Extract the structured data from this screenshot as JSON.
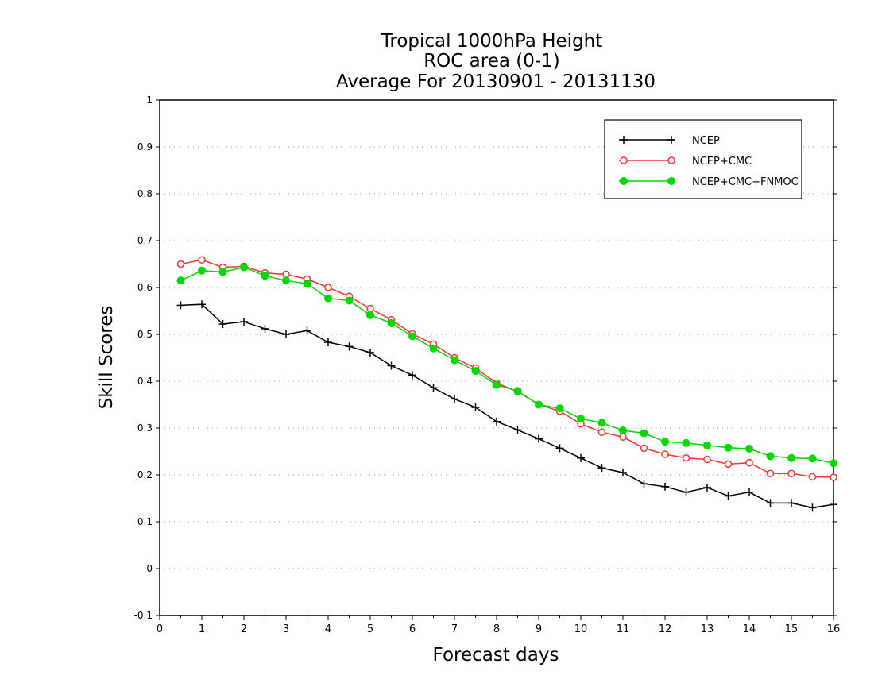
{
  "chart_data": {
    "type": "line",
    "title": [
      "Tropical 1000hPa Height",
      "ROC area (0-1)",
      "Average For 20130901 - 20131130"
    ],
    "xlabel": "Forecast days",
    "ylabel": "Skill Scores",
    "xlim": [
      0,
      16
    ],
    "ylim": [
      -0.1,
      1
    ],
    "xticks": [
      0,
      1,
      2,
      3,
      4,
      5,
      6,
      7,
      8,
      9,
      10,
      11,
      12,
      13,
      14,
      15,
      16
    ],
    "xtick_labels": [
      "0",
      "1",
      "2",
      "3",
      "4",
      "5",
      "6",
      "7",
      "8",
      "9",
      "10",
      "11",
      "12",
      "13",
      "14",
      "15",
      "16"
    ],
    "yticks": [
      -0.1,
      0,
      0.1,
      0.2,
      0.3,
      0.4,
      0.5,
      0.6,
      0.7,
      0.8,
      0.9,
      1
    ],
    "ytick_labels": [
      "-0.1",
      "0",
      "0.1",
      "0.2",
      "0.3",
      "0.4",
      "0.5",
      "0.6",
      "0.7",
      "0.8",
      "0.9",
      "1"
    ],
    "grid": "horizontal dotted",
    "legend_position": "top-right",
    "x": [
      0.5,
      1,
      1.5,
      2,
      2.5,
      3,
      3.5,
      4,
      4.5,
      5,
      5.5,
      6,
      6.5,
      7,
      7.5,
      8,
      8.5,
      9,
      9.5,
      10,
      10.5,
      11,
      11.5,
      12,
      12.5,
      13,
      13.5,
      14,
      14.5,
      15,
      15.5,
      16
    ],
    "series": [
      {
        "name": "NCEP",
        "color": "#000000",
        "marker": "plus",
        "values": [
          0.562,
          0.564,
          0.522,
          0.527,
          0.512,
          0.5,
          0.508,
          0.483,
          0.474,
          0.461,
          0.433,
          0.413,
          0.386,
          0.362,
          0.344,
          0.314,
          0.296,
          0.277,
          0.257,
          0.236,
          0.215,
          0.205,
          0.181,
          0.175,
          0.163,
          0.173,
          0.155,
          0.163,
          0.14,
          0.14,
          0.13,
          0.137
        ]
      },
      {
        "name": "NCEP+CMC",
        "color": "#ff3030",
        "marker": "open-circle",
        "values": [
          0.65,
          0.659,
          0.643,
          0.645,
          0.631,
          0.628,
          0.618,
          0.6,
          0.581,
          0.555,
          0.531,
          0.501,
          0.479,
          0.45,
          0.428,
          0.396,
          0.378,
          0.35,
          0.336,
          0.309,
          0.291,
          0.281,
          0.257,
          0.244,
          0.236,
          0.233,
          0.223,
          0.226,
          0.203,
          0.203,
          0.196,
          0.195
        ]
      },
      {
        "name": "NCEP+CMC+FNMOC",
        "color": "#00d800",
        "marker": "filled-circle",
        "values": [
          0.615,
          0.636,
          0.633,
          0.643,
          0.625,
          0.615,
          0.608,
          0.577,
          0.572,
          0.541,
          0.524,
          0.496,
          0.47,
          0.445,
          0.422,
          0.392,
          0.379,
          0.35,
          0.342,
          0.32,
          0.311,
          0.295,
          0.289,
          0.271,
          0.268,
          0.263,
          0.258,
          0.256,
          0.24,
          0.236,
          0.235,
          0.225
        ]
      }
    ]
  }
}
